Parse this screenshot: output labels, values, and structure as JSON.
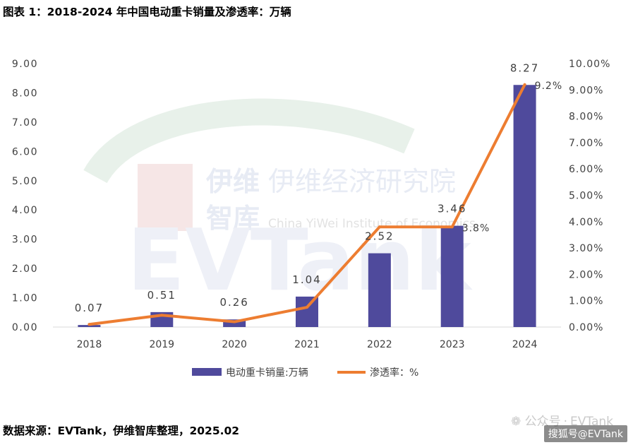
{
  "title": "图表 1：2018-2024 年中国电动重卡销量及渗透率：万辆",
  "source": "数据来源：EVTank，伊维智库整理，2025.02",
  "watermark": {
    "brand_cn_1": "伊维",
    "brand_cn_2": "智库",
    "institute_cn": "伊维经济研究院",
    "institute_en": "China YiWei Institute of Economics",
    "logo": "EVTank",
    "account_prefix": "公众号",
    "account_name": "EVTank",
    "corner": "搜狐号@EVTank"
  },
  "colors": {
    "bar": "#4f4a9c",
    "line": "#ed7d31",
    "axis_text": "#404040",
    "axis_line": "#d9d9d9"
  },
  "chart_data": {
    "type": "bar",
    "categories": [
      "2018",
      "2019",
      "2020",
      "2021",
      "2022",
      "2023",
      "2024"
    ],
    "series": [
      {
        "name": "电动重卡销量:万辆",
        "chart_type": "bar",
        "axis": "left",
        "values": [
          0.07,
          0.51,
          0.26,
          1.04,
          2.52,
          3.46,
          8.27
        ],
        "labels": [
          "0.07",
          "0.51",
          "0.26",
          "1.04",
          "2.52",
          "3.46",
          "8.27"
        ]
      },
      {
        "name": "渗透率：%",
        "chart_type": "line",
        "axis": "right",
        "values": [
          0.1,
          0.45,
          0.2,
          0.75,
          3.8,
          3.8,
          9.2
        ],
        "labels": [
          "",
          "",
          "",
          "",
          "",
          "3.8%",
          "9.2%"
        ]
      }
    ],
    "y_left": {
      "ylim": [
        0,
        9
      ],
      "ticks": [
        "0.00",
        "1.00",
        "2.00",
        "3.00",
        "4.00",
        "5.00",
        "6.00",
        "7.00",
        "8.00",
        "9.00"
      ]
    },
    "y_right": {
      "ylim": [
        0,
        10
      ],
      "ticks": [
        "0.00%",
        "1.00%",
        "2.00%",
        "3.00%",
        "4.00%",
        "5.00%",
        "6.00%",
        "7.00%",
        "8.00%",
        "9.00%",
        "10.00%"
      ]
    },
    "grid": false,
    "legend": "bottom"
  }
}
